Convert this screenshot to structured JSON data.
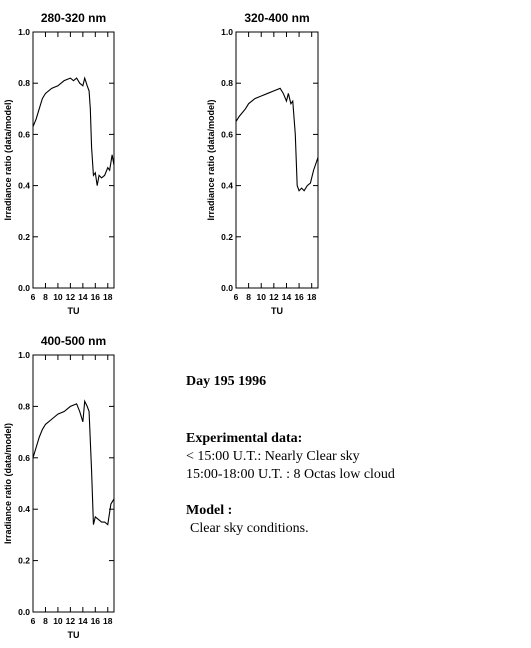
{
  "chart_data": [
    {
      "type": "line",
      "title": "280-320 nm",
      "xlabel": "TU",
      "ylabel": "Irradiance ratio (data/model)",
      "color": "#000000",
      "x": [
        6,
        6.5,
        7,
        7.5,
        8,
        9,
        10,
        10.5,
        11,
        12,
        12.5,
        13,
        13.5,
        14,
        14.3,
        14.7,
        15,
        15.2,
        15.4,
        15.7,
        16,
        16.3,
        16.6,
        17,
        17.5,
        18,
        18.3,
        18.7,
        19
      ],
      "values": [
        0.63,
        0.66,
        0.7,
        0.74,
        0.76,
        0.78,
        0.79,
        0.8,
        0.81,
        0.82,
        0.81,
        0.82,
        0.8,
        0.79,
        0.82,
        0.79,
        0.77,
        0.7,
        0.55,
        0.44,
        0.45,
        0.4,
        0.44,
        0.43,
        0.44,
        0.47,
        0.46,
        0.52,
        0.48
      ],
      "xlim": [
        6,
        19
      ],
      "ylim": [
        0,
        1
      ],
      "xticks": [
        6,
        8,
        10,
        12,
        14,
        16,
        18
      ],
      "yticks": [
        {
          "value": 0,
          "label": "0.0"
        },
        0.2,
        0.4,
        0.6,
        0.8,
        {
          "value": 1,
          "label": "1.0"
        }
      ]
    },
    {
      "type": "line",
      "title": "320-400 nm",
      "xlabel": "TU",
      "ylabel": "Irradiance ratio (data/model)",
      "color": "#000000",
      "x": [
        6,
        6.5,
        7.5,
        8,
        9,
        10,
        11,
        12,
        13,
        13.5,
        14,
        14.3,
        14.7,
        15,
        15.4,
        15.7,
        16,
        16.4,
        16.8,
        17.3,
        17.8,
        18.3,
        19
      ],
      "values": [
        0.65,
        0.67,
        0.7,
        0.72,
        0.74,
        0.75,
        0.76,
        0.77,
        0.78,
        0.76,
        0.73,
        0.76,
        0.72,
        0.73,
        0.6,
        0.4,
        0.38,
        0.39,
        0.38,
        0.4,
        0.41,
        0.46,
        0.51
      ],
      "xlim": [
        6,
        19
      ],
      "ylim": [
        0,
        1
      ],
      "xticks": [
        6,
        8,
        10,
        12,
        14,
        16,
        18
      ],
      "yticks": [
        {
          "value": 0,
          "label": "0.0"
        },
        0.2,
        0.4,
        0.6,
        0.8,
        {
          "value": 1,
          "label": "1.0"
        }
      ]
    },
    {
      "type": "line",
      "title": "400-500 nm",
      "xlabel": "TU",
      "ylabel": "Irradiance ratio (data/model)",
      "color": "#000000",
      "x": [
        6,
        6.5,
        7,
        7.5,
        8,
        9,
        10,
        11,
        12,
        13,
        13.5,
        14,
        14.3,
        14.7,
        15,
        15.4,
        15.7,
        16,
        16.5,
        17,
        17.5,
        18,
        18.5,
        19
      ],
      "values": [
        0.6,
        0.64,
        0.68,
        0.71,
        0.73,
        0.75,
        0.77,
        0.78,
        0.8,
        0.81,
        0.78,
        0.74,
        0.82,
        0.8,
        0.78,
        0.55,
        0.34,
        0.37,
        0.36,
        0.35,
        0.35,
        0.34,
        0.42,
        0.44
      ],
      "xlim": [
        6,
        19
      ],
      "ylim": [
        0,
        1
      ],
      "xticks": [
        6,
        8,
        10,
        12,
        14,
        16,
        18
      ],
      "yticks": [
        {
          "value": 0,
          "label": "0.0"
        },
        0.2,
        0.4,
        0.6,
        0.8,
        {
          "value": 1,
          "label": "1.0"
        }
      ]
    }
  ],
  "notes": {
    "day": "Day 195 1996",
    "experimental_heading": "Experimental data:",
    "experimental_lines": [
      "< 15:00 U.T.: Nearly Clear sky",
      "15:00-18:00 U.T. : 8 Octas low cloud"
    ],
    "model_heading": "Model :",
    "model_line": "Clear sky conditions."
  }
}
